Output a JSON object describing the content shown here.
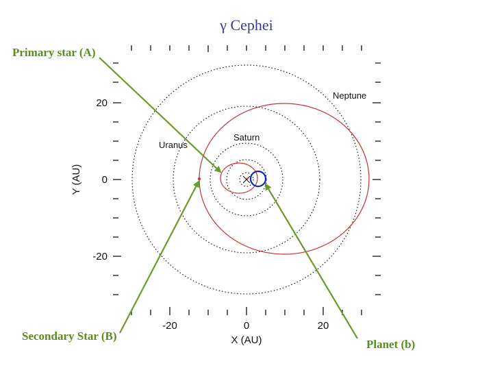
{
  "title": "γ Cephei",
  "callouts": {
    "primary": "Primary star (A)",
    "secondary": "Secondary Star (B)",
    "planet": "Planet (b)"
  },
  "axes": {
    "xlabel": "X (AU)",
    "ylabel": "Y (AU)",
    "xticks": [
      "-20",
      "0",
      "20"
    ],
    "yticks": [
      "20",
      "0",
      "-20"
    ]
  },
  "orbit_labels": {
    "neptune": "Neptune",
    "uranus": "Uranus",
    "saturn": "Saturn"
  },
  "colors": {
    "arrow": "#6b9a2a",
    "binary_orbit": "#c83232",
    "planet_orbit": "#1428b4",
    "title": "#3a3a8c",
    "solar_orbits": "#000000"
  }
}
